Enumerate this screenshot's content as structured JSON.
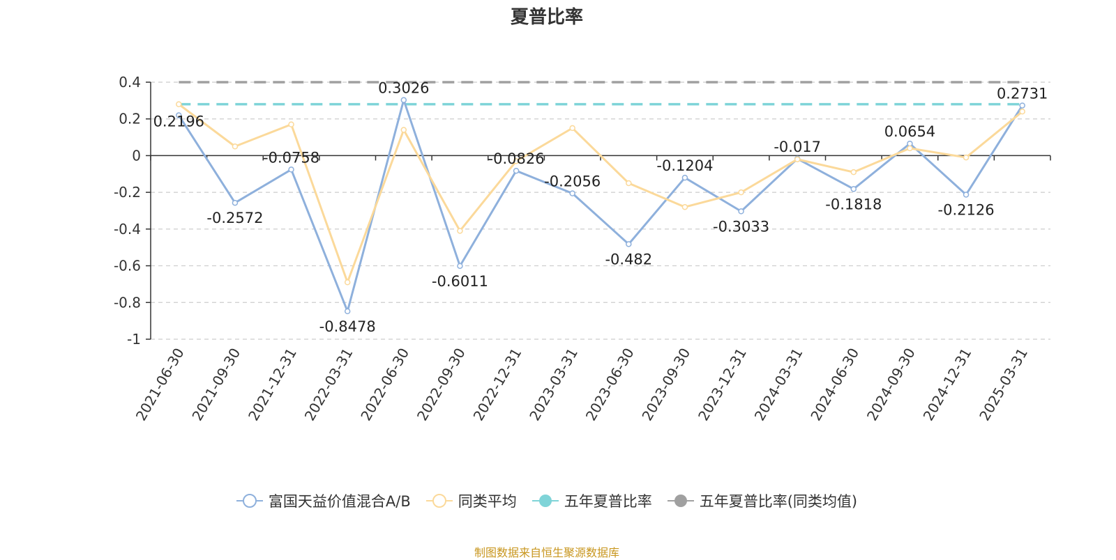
{
  "title": "夏普比率",
  "source": "制图数据来自恒生聚源数据库",
  "legend": [
    {
      "label": "富国天益价值混合A/B",
      "color": "#8eb0dc",
      "style": "line-hollow"
    },
    {
      "label": "同类平均",
      "color": "#fbd99a",
      "style": "line-hollow"
    },
    {
      "label": "五年夏普比率",
      "color": "#7fd4d8",
      "style": "line-filled"
    },
    {
      "label": "五年夏普比率(同类均值)",
      "color": "#a0a0a0",
      "style": "line-filled"
    }
  ],
  "chart_data": {
    "type": "line",
    "title": "夏普比率",
    "categories": [
      "2021-06-30",
      "2021-09-30",
      "2021-12-31",
      "2022-03-31",
      "2022-06-30",
      "2022-09-30",
      "2022-12-31",
      "2023-03-31",
      "2023-06-30",
      "2023-09-30",
      "2023-12-31",
      "2024-03-31",
      "2024-06-30",
      "2024-09-30",
      "2024-12-31",
      "2025-03-31"
    ],
    "ylim": [
      -1,
      0.4
    ],
    "yticks": [
      0.4,
      0.2,
      0,
      -0.2,
      -0.4,
      -0.6,
      -0.8,
      -1
    ],
    "ytick_labels": [
      "0.4",
      "0.2",
      "0",
      "-0.2",
      "-0.4",
      "-0.6",
      "-0.8",
      "-1"
    ],
    "grid": true,
    "legend_position": "bottom",
    "series": [
      {
        "name": "富国天益价值混合A/B",
        "color": "#8eb0dc",
        "values": [
          0.2196,
          -0.2572,
          -0.0758,
          -0.8478,
          0.3026,
          -0.6011,
          -0.0826,
          -0.2056,
          -0.482,
          -0.1204,
          -0.3033,
          -0.017,
          -0.1818,
          0.0654,
          -0.2126,
          0.2731
        ],
        "labels": [
          "0.2196",
          "-0.2572",
          "-0.0758",
          "-0.8478",
          "0.3026",
          "-0.6011",
          "-0.0826",
          "-0.2056",
          "-0.482",
          "-0.1204",
          "-0.3033",
          "-0.017",
          "-0.1818",
          "0.0654",
          "-0.2126",
          "0.2731"
        ]
      },
      {
        "name": "同类平均",
        "color": "#fbd99a",
        "values": [
          0.28,
          0.05,
          0.17,
          -0.69,
          0.14,
          -0.41,
          -0.03,
          0.15,
          -0.15,
          -0.28,
          -0.2,
          -0.02,
          -0.09,
          0.04,
          -0.01,
          0.24
        ]
      }
    ],
    "reference_lines": [
      {
        "name": "五年夏普比率",
        "value": 0.28,
        "color": "#7fd4d8"
      },
      {
        "name": "五年夏普比率(同类均值)",
        "value": 0.4,
        "color": "#a0a0a0"
      }
    ]
  }
}
